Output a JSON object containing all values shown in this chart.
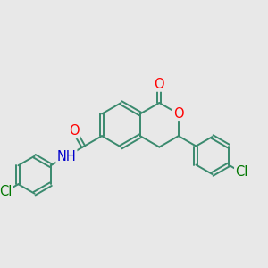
{
  "background_color": "#e8e8e8",
  "bond_color": "#3a8a6e",
  "atom_colors": {
    "O": "#ff0000",
    "N": "#0000cc",
    "Cl": "#007700"
  },
  "bond_width": 1.4,
  "dbo": 0.07,
  "font_size": 10.5,
  "figsize": [
    3.0,
    3.0
  ],
  "dpi": 100
}
